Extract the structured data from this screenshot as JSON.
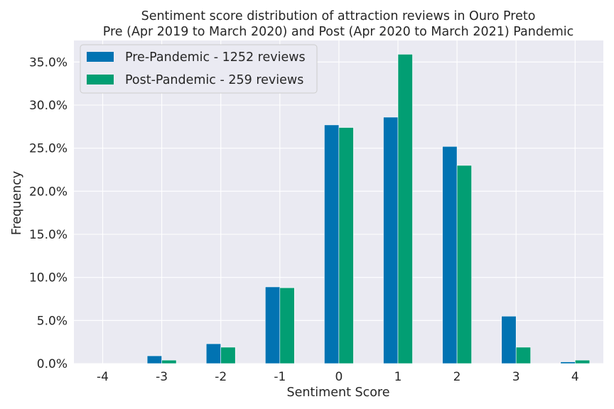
{
  "chart_data": {
    "type": "bar",
    "title_line1": "Sentiment score distribution of attraction reviews in Ouro Preto",
    "title_line2": "Pre (Apr 2019 to March 2020) and Post (Apr 2020 to March 2021) Pandemic",
    "xlabel": "Sentiment Score",
    "ylabel": "Frequency",
    "categories": [
      "-4",
      "-3",
      "-2",
      "-1",
      "0",
      "1",
      "2",
      "3",
      "4"
    ],
    "ylim": [
      0,
      37.5
    ],
    "yticks": [
      0,
      5,
      10,
      15,
      20,
      25,
      30,
      35
    ],
    "ytick_labels": [
      "0.0%",
      "5.0%",
      "10.0%",
      "15.0%",
      "20.0%",
      "25.0%",
      "30.0%",
      "35.0%"
    ],
    "grid": true,
    "legend_position": "top-left",
    "series": [
      {
        "name": "Pre-Pandemic - 1252 reviews",
        "color": "#0173b2",
        "values": [
          0.0,
          0.9,
          2.3,
          8.9,
          27.7,
          28.6,
          25.2,
          5.5,
          0.2
        ]
      },
      {
        "name": "Post-Pandemic - 259 reviews",
        "color": "#029e73",
        "values": [
          0.0,
          0.4,
          1.9,
          8.8,
          27.4,
          35.9,
          23.0,
          1.9,
          0.4
        ]
      }
    ],
    "plot_background": "#eaeaf2"
  }
}
